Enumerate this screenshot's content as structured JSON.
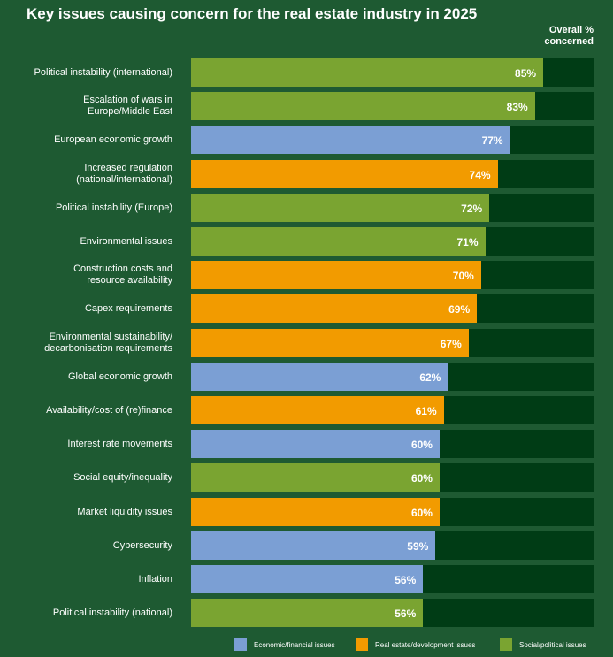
{
  "title": "Key issues causing concern for the real estate industry in 2025",
  "overall_label": "Overall %\nconcerned",
  "colors": {
    "economic": "#7b9fd4",
    "real_estate": "#f29b00",
    "social": "#7aa431",
    "track": "#003c15",
    "background": "#1e5a32"
  },
  "legend": [
    {
      "key": "economic",
      "label": "Economic/financial issues"
    },
    {
      "key": "real_estate",
      "label": "Real estate/development issues"
    },
    {
      "key": "social",
      "label": "Social/political issues"
    }
  ],
  "chart_data": {
    "type": "bar",
    "orientation": "horizontal",
    "title": "Key issues causing concern for the real estate industry in 2025",
    "value_label": "Overall % concerned",
    "xlim": [
      0,
      100
    ],
    "categories": [
      "Political instability (international)",
      "Escalation of wars in\nEurope/Middle East",
      "European economic growth",
      "Increased regulation\n(national/international)",
      "Political instability (Europe)",
      "Environmental issues",
      "Construction costs and\nresource availability",
      "Capex requirements",
      "Environmental sustainability/\ndecarbonisation requirements",
      "Global economic growth",
      "Availability/cost of (re)finance",
      "Interest rate movements",
      "Social equity/inequality",
      "Market liquidity issues",
      "Cybersecurity",
      "Inflation",
      "Political instability (national)"
    ],
    "values": [
      85,
      83,
      77,
      74,
      72,
      71,
      70,
      69,
      67,
      62,
      61,
      60,
      60,
      60,
      59,
      56,
      56
    ],
    "value_labels": [
      "85%",
      "83%",
      "77%",
      "74%",
      "72%",
      "71%",
      "70%",
      "69%",
      "67%",
      "62%",
      "61%",
      "60%",
      "60%",
      "60%",
      "59%",
      "56%",
      "56%"
    ],
    "groups": [
      "social",
      "social",
      "economic",
      "real_estate",
      "social",
      "social",
      "real_estate",
      "real_estate",
      "real_estate",
      "economic",
      "real_estate",
      "economic",
      "social",
      "real_estate",
      "economic",
      "economic",
      "social"
    ],
    "legend_position": "bottom-right",
    "grid": false
  }
}
